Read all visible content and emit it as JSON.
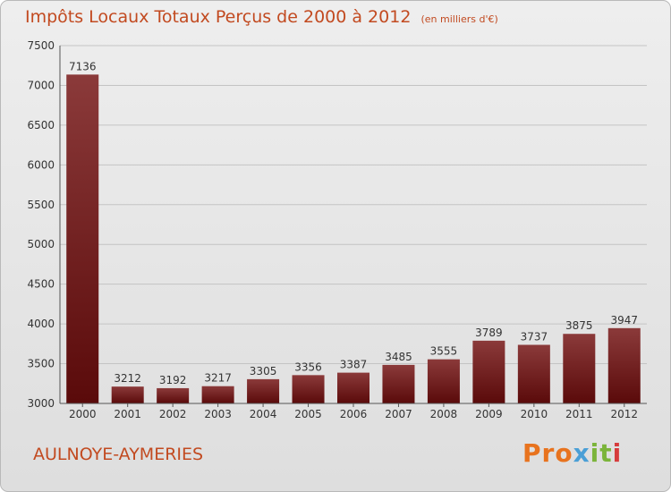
{
  "chart_data": {
    "type": "bar",
    "title": "Impôts Locaux Totaux Perçus de 2000 à 2012",
    "subtitle": "(en milliers d'€)",
    "xlabel": "",
    "ylabel": "",
    "categories": [
      "2000",
      "2001",
      "2002",
      "2003",
      "2004",
      "2005",
      "2006",
      "2007",
      "2008",
      "2009",
      "2010",
      "2011",
      "2012"
    ],
    "values": [
      7136,
      3212,
      3192,
      3217,
      3305,
      3356,
      3387,
      3485,
      3555,
      3789,
      3737,
      3875,
      3947
    ],
    "ylim": [
      3000,
      7500
    ],
    "yticks": [
      3000,
      3500,
      4000,
      4500,
      5000,
      5500,
      6000,
      6500,
      7000,
      7500
    ],
    "grid": true,
    "bar_color_top": "#8b3a3a",
    "bar_color_bottom": "#5a0a0a"
  },
  "location": "AULNOYE-AYMERIES",
  "logo": {
    "text": "Proxiti",
    "parts": [
      "Pro",
      "x",
      "it",
      "i"
    ]
  }
}
